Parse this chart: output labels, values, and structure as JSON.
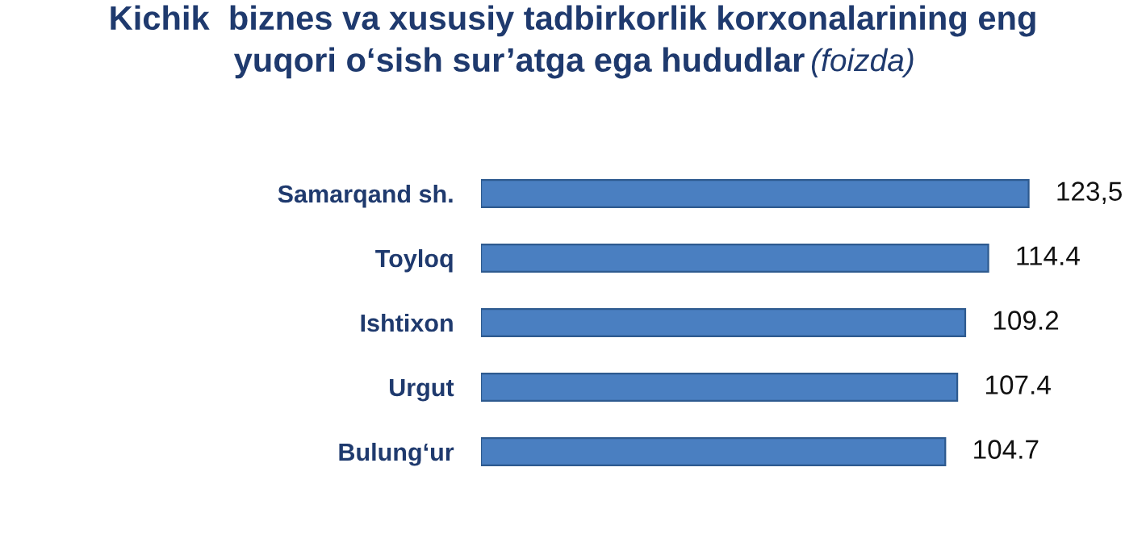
{
  "chart_data": {
    "type": "bar",
    "orientation": "horizontal",
    "title": "Kichik  biznes va xususiy tadbirkorlik korxonalarining eng\nyuqori o‘sish sur’atga ega hududlar",
    "subtitle": "(foizda)",
    "categories": [
      "Samarqand sh.",
      "Toyloq",
      "Ishtixon",
      "Urgut",
      "Bulung‘ur"
    ],
    "values": [
      123.5,
      114.4,
      109.2,
      107.4,
      104.7
    ],
    "value_labels": [
      "123,5",
      "114.4",
      "109.2",
      "107.4",
      "104.7"
    ],
    "color": "#4a7fc1",
    "grid": false,
    "legend": false
  }
}
